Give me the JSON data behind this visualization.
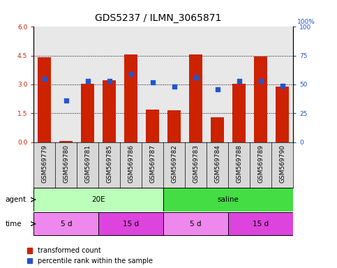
{
  "title": "GDS5237 / ILMN_3065871",
  "samples": [
    "GSM569779",
    "GSM569780",
    "GSM569781",
    "GSM569785",
    "GSM569786",
    "GSM569787",
    "GSM569782",
    "GSM569783",
    "GSM569784",
    "GSM569788",
    "GSM569789",
    "GSM569790"
  ],
  "transformed_count": [
    4.4,
    0.05,
    3.05,
    3.2,
    4.55,
    1.7,
    1.65,
    4.55,
    1.3,
    3.05,
    4.45,
    2.9
  ],
  "percentile_rank_pct": [
    55,
    36,
    53,
    53,
    59,
    52,
    48,
    56,
    46,
    53,
    53,
    49
  ],
  "ylim_left": [
    0,
    6
  ],
  "ylim_right": [
    0,
    100
  ],
  "yticks_left": [
    0,
    1.5,
    3.0,
    4.5,
    6
  ],
  "yticks_right": [
    0,
    25,
    50,
    75,
    100
  ],
  "bar_color": "#cc2200",
  "dot_color": "#2255cc",
  "agent_groups": [
    {
      "label": "20E",
      "start": 0,
      "end": 6,
      "color": "#bbffbb"
    },
    {
      "label": "saline",
      "start": 6,
      "end": 12,
      "color": "#44dd44"
    }
  ],
  "time_groups": [
    {
      "label": "5 d",
      "start": 0,
      "end": 3,
      "color": "#ee88ee"
    },
    {
      "label": "15 d",
      "start": 3,
      "end": 6,
      "color": "#dd44dd"
    },
    {
      "label": "5 d",
      "start": 6,
      "end": 9,
      "color": "#ee88ee"
    },
    {
      "label": "15 d",
      "start": 9,
      "end": 12,
      "color": "#dd44dd"
    }
  ],
  "agent_label": "agent",
  "time_label": "time",
  "legend_bar": "transformed count",
  "legend_dot": "percentile rank within the sample",
  "plot_bg": "#e8e8e8",
  "ticklabel_bg": "#d8d8d8",
  "title_fontsize": 10,
  "tick_fontsize": 6.5,
  "label_fontsize": 7.5,
  "annot_fontsize": 7.5,
  "dotted_lines": [
    1.5,
    3.0,
    4.5
  ]
}
